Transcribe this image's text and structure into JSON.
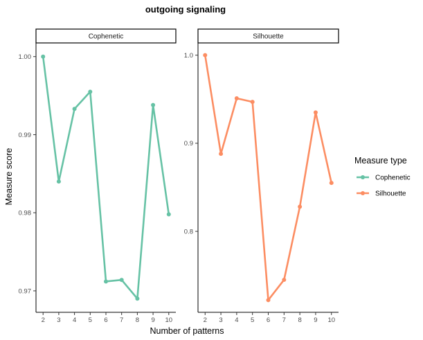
{
  "chart_data": {
    "type": "line",
    "title": "outgoing signaling",
    "xlabel": "Number of patterns",
    "ylabel": "Measure score",
    "legend": {
      "title": "Measure type",
      "placement": "right",
      "entries": [
        {
          "label": "Cophenetic",
          "color": "#66c2a5"
        },
        {
          "label": "Silhouette",
          "color": "#fc8d62"
        }
      ]
    },
    "grid": false,
    "panels": [
      {
        "strip": "Cophenetic",
        "series_name": "Cophenetic",
        "color": "#66c2a5",
        "x": [
          2,
          3,
          4,
          5,
          6,
          7,
          8,
          9,
          10
        ],
        "y": [
          1.0,
          0.984,
          0.9933,
          0.9955,
          0.9712,
          0.9714,
          0.969,
          0.9938,
          0.9798
        ],
        "xlim": [
          1.55,
          10.45
        ],
        "ylim": [
          0.96725,
          1.00175
        ],
        "yticks": [
          0.97,
          0.98,
          0.99,
          1.0
        ],
        "ytick_labels": [
          "0.97",
          "0.98",
          "0.99",
          "1.00"
        ],
        "xticks": [
          2,
          3,
          4,
          5,
          6,
          7,
          8,
          9,
          10
        ],
        "xtick_labels": [
          "2",
          "3",
          "4",
          "5",
          "6",
          "7",
          "8",
          "9",
          "10"
        ]
      },
      {
        "strip": "Silhouette",
        "series_name": "Silhouette",
        "color": "#fc8d62",
        "x": [
          2,
          3,
          4,
          5,
          6,
          7,
          8,
          9,
          10
        ],
        "y": [
          1.0,
          0.888,
          0.951,
          0.947,
          0.722,
          0.745,
          0.828,
          0.935,
          0.855
        ],
        "xlim": [
          1.55,
          10.45
        ],
        "ylim": [
          0.7081,
          1.0139
        ],
        "yticks": [
          0.8,
          0.9,
          1.0
        ],
        "ytick_labels": [
          "0.8",
          "0.9",
          "1.0"
        ],
        "xticks": [
          2,
          3,
          4,
          5,
          6,
          7,
          8,
          9,
          10
        ],
        "xtick_labels": [
          "2",
          "3",
          "4",
          "5",
          "6",
          "7",
          "8",
          "9",
          "10"
        ]
      }
    ]
  }
}
